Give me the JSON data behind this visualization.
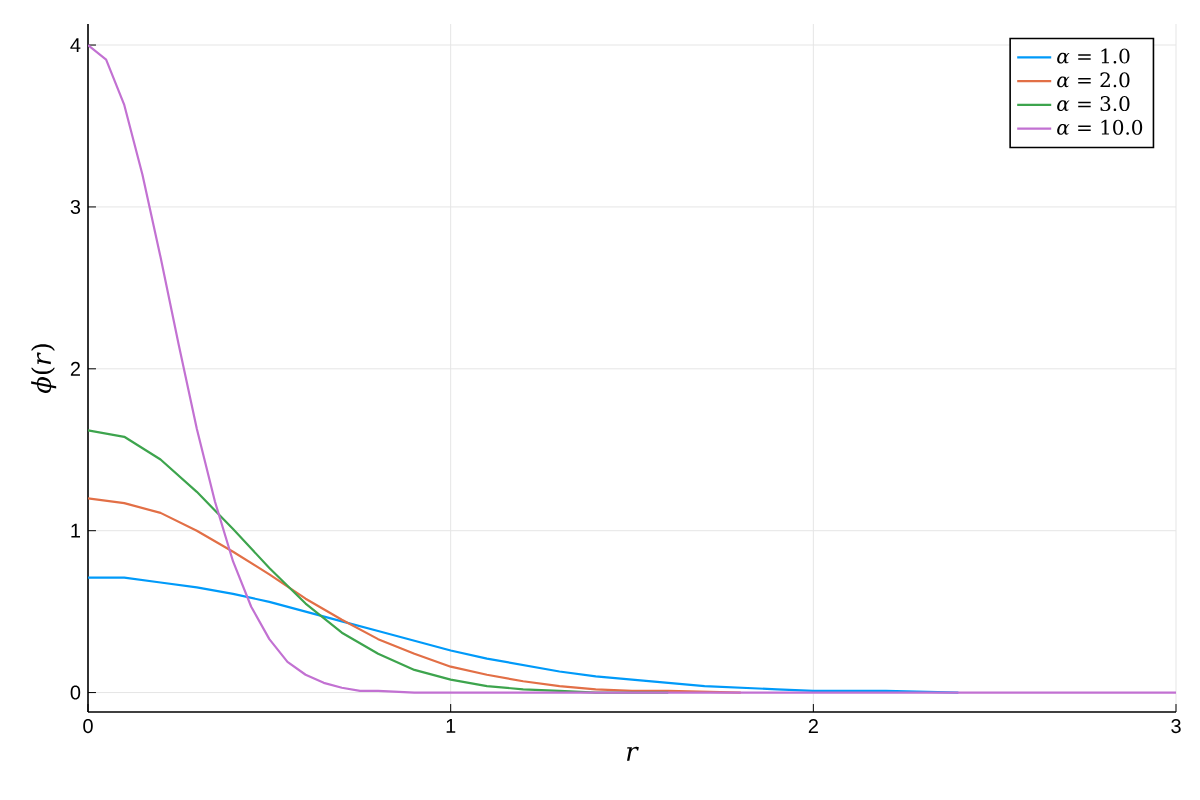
{
  "chart_data": {
    "type": "line",
    "xlabel": "*r*",
    "ylabel": "*ϕ*(*r*)",
    "xlim": [
      0,
      3
    ],
    "ylim": [
      -0.12,
      4.13
    ],
    "xticks": [
      0,
      1,
      2,
      3
    ],
    "yticks": [
      0,
      1,
      2,
      3,
      4
    ],
    "grid": true,
    "legend": "top right",
    "marker": "none",
    "line_style": "solid",
    "series": [
      {
        "name": "*α* = 1.0",
        "color": "#009af9",
        "x": [
          0,
          0.1,
          0.2,
          0.3,
          0.4,
          0.5,
          0.6,
          0.7,
          0.8,
          0.9,
          1.0,
          1.1,
          1.2,
          1.3,
          1.4,
          1.5,
          1.6,
          1.7,
          1.8,
          1.9,
          2.0,
          2.2,
          2.4
        ],
        "values": [
          0.71,
          0.71,
          0.68,
          0.65,
          0.61,
          0.56,
          0.5,
          0.44,
          0.38,
          0.32,
          0.26,
          0.21,
          0.17,
          0.13,
          0.1,
          0.08,
          0.06,
          0.04,
          0.03,
          0.02,
          0.01,
          0.01,
          0
        ]
      },
      {
        "name": "*α* = 2.0",
        "color": "#e26f46",
        "x": [
          0,
          0.1,
          0.2,
          0.3,
          0.4,
          0.5,
          0.6,
          0.7,
          0.8,
          0.9,
          1.0,
          1.1,
          1.2,
          1.3,
          1.4,
          1.5,
          1.6,
          1.8
        ],
        "values": [
          1.2,
          1.17,
          1.11,
          1.0,
          0.87,
          0.73,
          0.58,
          0.45,
          0.33,
          0.24,
          0.16,
          0.11,
          0.07,
          0.04,
          0.02,
          0.01,
          0.01,
          0
        ]
      },
      {
        "name": "*α* = 3.0",
        "color": "#3da44d",
        "x": [
          0,
          0.1,
          0.2,
          0.3,
          0.4,
          0.5,
          0.6,
          0.7,
          0.8,
          0.9,
          1.0,
          1.1,
          1.2,
          1.3,
          1.4,
          1.6
        ],
        "values": [
          1.62,
          1.58,
          1.44,
          1.24,
          1.01,
          0.77,
          0.55,
          0.37,
          0.24,
          0.14,
          0.08,
          0.04,
          0.02,
          0.01,
          0,
          0
        ]
      },
      {
        "name": "*α* = 10.0",
        "color": "#c271d2",
        "x": [
          0,
          0.05,
          0.1,
          0.15,
          0.2,
          0.25,
          0.3,
          0.35,
          0.4,
          0.45,
          0.5,
          0.55,
          0.6,
          0.65,
          0.7,
          0.75,
          0.8,
          0.9,
          1.0,
          1.5,
          2.0,
          3.0
        ],
        "values": [
          4.0,
          3.91,
          3.63,
          3.2,
          2.69,
          2.15,
          1.63,
          1.18,
          0.81,
          0.53,
          0.33,
          0.19,
          0.11,
          0.06,
          0.03,
          0.01,
          0.01,
          0,
          0,
          0,
          0,
          0
        ]
      }
    ]
  }
}
